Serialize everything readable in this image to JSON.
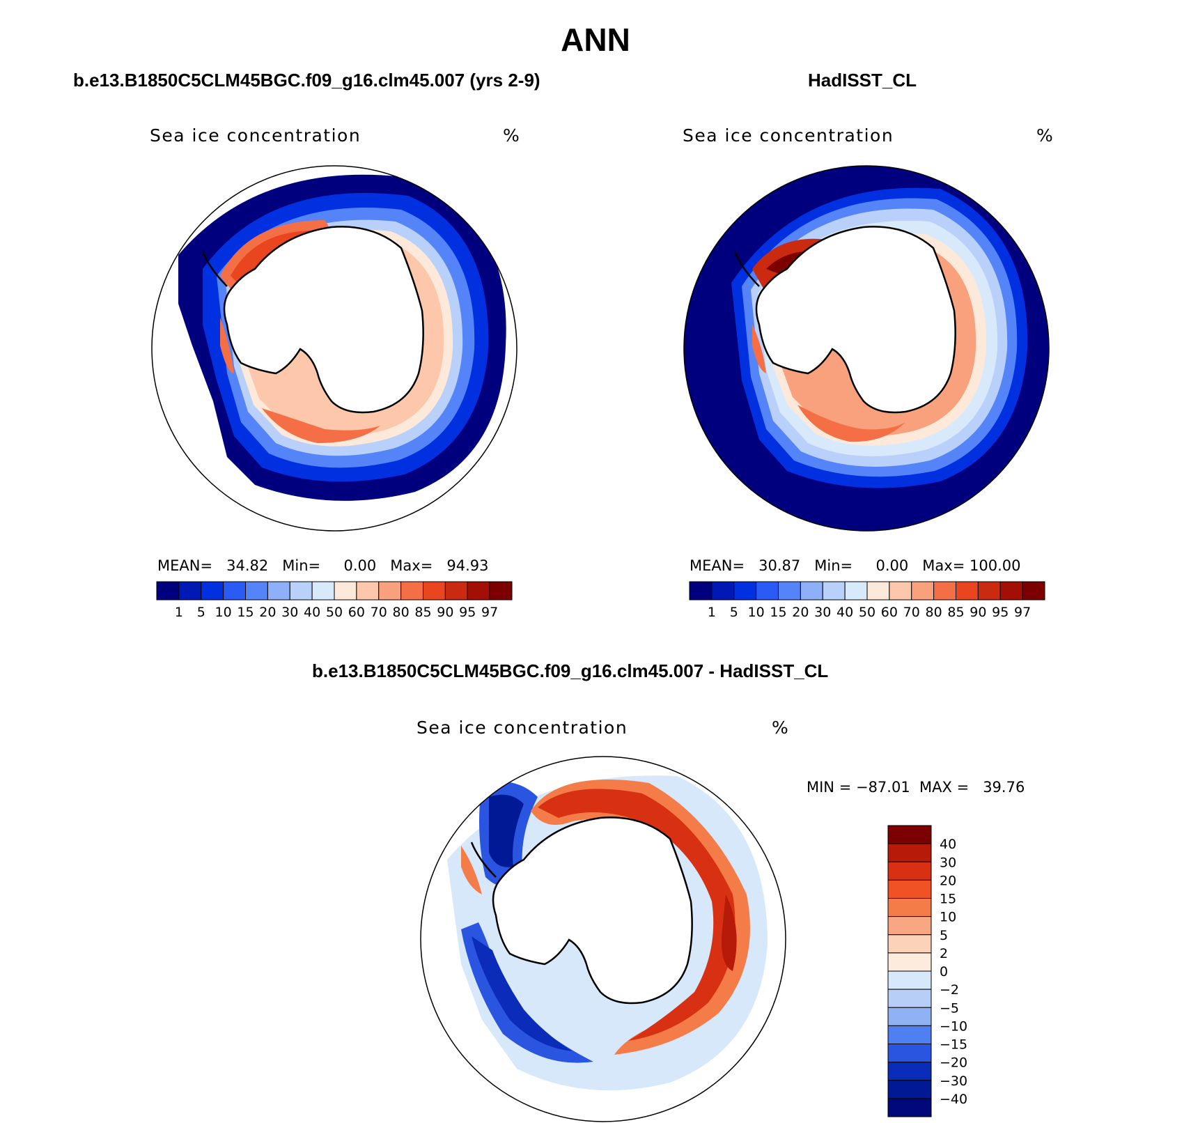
{
  "title": "ANN",
  "panels": [
    {
      "id": "model",
      "title": "b.e13.B1850C5CLM45BGC.f09_g16.clm45.007 (yrs 2-9)",
      "variable": "Sea ice concentration",
      "units": "%",
      "stats": {
        "mean_label": "MEAN=",
        "mean": "34.82",
        "min_label": "Min=",
        "min": "0.00",
        "max_label": "Max=",
        "max": "94.93"
      }
    },
    {
      "id": "obs",
      "title": "HadISST_CL",
      "variable": "Sea ice concentration",
      "units": "%",
      "stats": {
        "mean_label": "MEAN=",
        "mean": "30.87",
        "min_label": "Min=",
        "min": "0.00",
        "max_label": "Max=",
        "max": "100.00"
      }
    }
  ],
  "diff_panel": {
    "title": "b.e13.B1850C5CLM45BGC.f09_g16.clm45.007 - HadISST_CL",
    "variable": "Sea ice concentration",
    "units": "%",
    "minmax": "MIN = −87.01  MAX =   39.76"
  },
  "colorbar_abs": {
    "labels": [
      "1",
      "5",
      "10",
      "15",
      "20",
      "30",
      "40",
      "50",
      "60",
      "70",
      "80",
      "85",
      "90",
      "95",
      "97"
    ],
    "colors": [
      "#00007f",
      "#0018b4",
      "#0030e0",
      "#2a5cf5",
      "#5584f8",
      "#8eb0f8",
      "#b9d0fb",
      "#d9e9fc",
      "#fde9da",
      "#fcc7ab",
      "#f9a07c",
      "#f46f45",
      "#e9461f",
      "#c92a10",
      "#a30e05",
      "#7c0000"
    ]
  },
  "colorbar_diff": {
    "labels": [
      "40",
      "30",
      "20",
      "15",
      "10",
      "5",
      "2",
      "0",
      "−2",
      "−5",
      "−10",
      "−15",
      "−20",
      "−30",
      "−40"
    ],
    "colors": [
      "#7c0000",
      "#b61a08",
      "#d83012",
      "#f05224",
      "#f47c48",
      "#f9a783",
      "#fcd2b8",
      "#fdebdd",
      "#d8e8fb",
      "#b7cff7",
      "#8fb2f4",
      "#4f80f2",
      "#2a55e0",
      "#0b2cb8",
      "#001a96",
      "#00087a"
    ]
  }
}
